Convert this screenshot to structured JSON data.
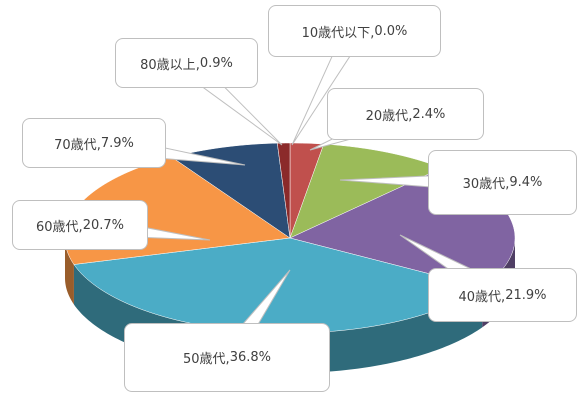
{
  "chart_data": {
    "type": "pie",
    "categories": [
      "10歳代以下",
      "20歳代",
      "30歳代",
      "40歳代",
      "50歳代",
      "60歳代",
      "70歳代",
      "80歳以上"
    ],
    "values": [
      0.0,
      2.4,
      9.4,
      21.9,
      36.8,
      20.7,
      7.9,
      0.9
    ],
    "value_labels": [
      "0.0%",
      "2.4%",
      "9.4%",
      "21.9%",
      "36.8%",
      "20.7%",
      "7.9%",
      "0.9%"
    ],
    "colors": [
      "#7f2626",
      "#c0504d",
      "#9bbb59",
      "#8064a2",
      "#4bacc6",
      "#f79646",
      "#2c4d75",
      "#8b2a2a"
    ]
  }
}
